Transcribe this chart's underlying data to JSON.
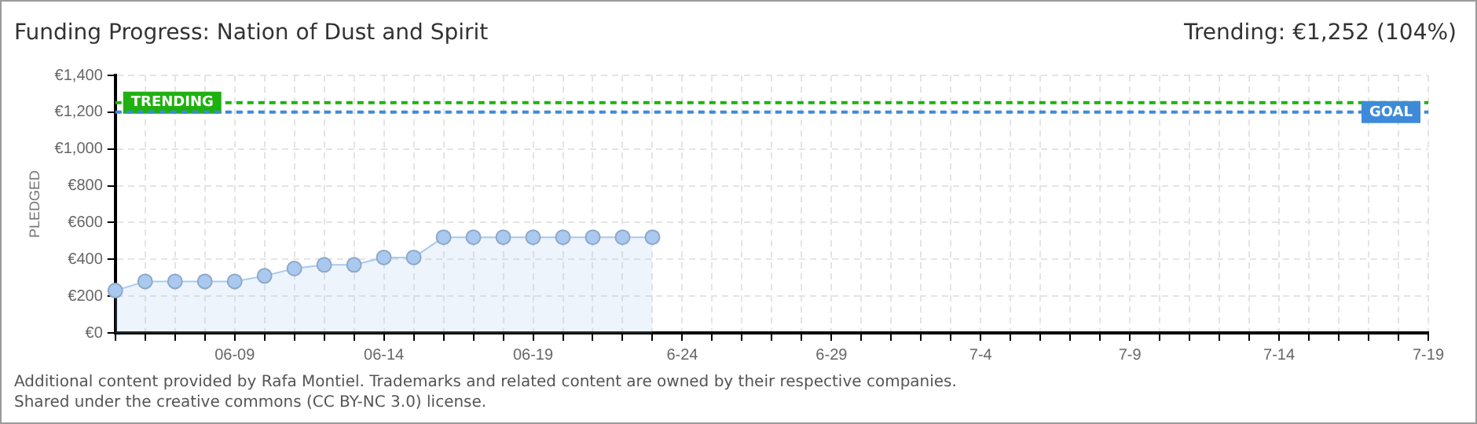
{
  "chart_data": {
    "type": "area",
    "title": "Funding Progress: Nation of Dust and Spirit",
    "subtitle": "Trending: €1,252 (104%)",
    "ylabel": "PLEDGED",
    "x": [
      "--06-05",
      "--06-06",
      "--06-07",
      "--06-08",
      "--06-09",
      "--06-10",
      "--06-11",
      "--06-12",
      "--06-13",
      "--06-14",
      "--06-15",
      "--06-16",
      "--06-17",
      "--06-18",
      "--06-19",
      "--06-20",
      "--06-21",
      "--06-22",
      "--06-23"
    ],
    "series": [
      {
        "color": "#a9c9f0",
        "values": [
          230,
          280,
          280,
          280,
          280,
          310,
          350,
          370,
          370,
          410,
          410,
          520,
          520,
          520,
          520,
          520,
          520,
          520,
          520
        ]
      }
    ],
    "xlim": [
      "--06-05",
      "--07-19"
    ],
    "xticks": [
      {
        "value": "--06-05",
        "label": null
      },
      {
        "value": "--06-06",
        "label": null
      },
      {
        "value": "--06-07",
        "label": null
      },
      {
        "value": "--06-08",
        "label": null
      },
      {
        "value": "--06-09",
        "label": "06-09"
      },
      {
        "value": "--06-10",
        "label": null
      },
      {
        "value": "--06-11",
        "label": null
      },
      {
        "value": "--06-12",
        "label": null
      },
      {
        "value": "--06-13",
        "label": null
      },
      {
        "value": "--06-14",
        "label": "06-14"
      },
      {
        "value": "--06-15",
        "label": null
      },
      {
        "value": "--06-16",
        "label": null
      },
      {
        "value": "--06-17",
        "label": null
      },
      {
        "value": "--06-18",
        "label": null
      },
      {
        "value": "--06-19",
        "label": "06-19"
      },
      {
        "value": "--06-20",
        "label": null
      },
      {
        "value": "--06-21",
        "label": null
      },
      {
        "value": "--06-22",
        "label": null
      },
      {
        "value": "--06-23",
        "label": null
      },
      {
        "value": "--06-24",
        "label": "6-24"
      },
      {
        "value": "--06-25",
        "label": null
      },
      {
        "value": "--06-26",
        "label": null
      },
      {
        "value": "--06-27",
        "label": null
      },
      {
        "value": "--06-28",
        "label": null
      },
      {
        "value": "--06-29",
        "label": "6-29"
      },
      {
        "value": "--06-30",
        "label": null
      },
      {
        "value": "--07-01",
        "label": null
      },
      {
        "value": "--07-02",
        "label": null
      },
      {
        "value": "--07-03",
        "label": null
      },
      {
        "value": "--07-04",
        "label": "7-4"
      },
      {
        "value": "--07-05",
        "label": null
      },
      {
        "value": "--07-06",
        "label": null
      },
      {
        "value": "--07-07",
        "label": null
      },
      {
        "value": "--07-08",
        "label": null
      },
      {
        "value": "--07-09",
        "label": "7-9"
      },
      {
        "value": "--07-10",
        "label": null
      },
      {
        "value": "--07-11",
        "label": null
      },
      {
        "value": "--07-12",
        "label": null
      },
      {
        "value": "--07-13",
        "label": null
      },
      {
        "value": "--07-14",
        "label": "7-14"
      },
      {
        "value": "--07-15",
        "label": null
      },
      {
        "value": "--07-16",
        "label": null
      },
      {
        "value": "--07-17",
        "label": null
      },
      {
        "value": "--07-18",
        "label": null
      },
      {
        "value": "--07-19",
        "label": "7-19"
      }
    ],
    "ylim": [
      0,
      1400
    ],
    "yticks": [
      {
        "value": 0,
        "label": "€0"
      },
      {
        "value": 200,
        "label": "€200"
      },
      {
        "value": 400,
        "label": "€400"
      },
      {
        "value": 600,
        "label": "€600"
      },
      {
        "value": 800,
        "label": "€800"
      },
      {
        "value": 1000,
        "label": "€1,000"
      },
      {
        "value": 1200,
        "label": "€1,200"
      },
      {
        "value": 1400,
        "label": "€1,400"
      }
    ],
    "ref_lines": [
      {
        "axis": "y",
        "value": 1252,
        "label": "TRENDING",
        "color": "#1fb10f",
        "line_style": "dashed"
      },
      {
        "axis": "y",
        "value": 1200,
        "label": "GOAL",
        "color": "#3d8bd8",
        "line_style": "dashed"
      }
    ],
    "grid": true,
    "legend": false,
    "marker": "circle",
    "line_style": "solid",
    "annotations": [
      "Additional content provided by Rafa Montiel. Trademarks and related content are owned by their respective companies.",
      "Shared under the creative commons (CC BY-NC 3.0) license."
    ]
  }
}
